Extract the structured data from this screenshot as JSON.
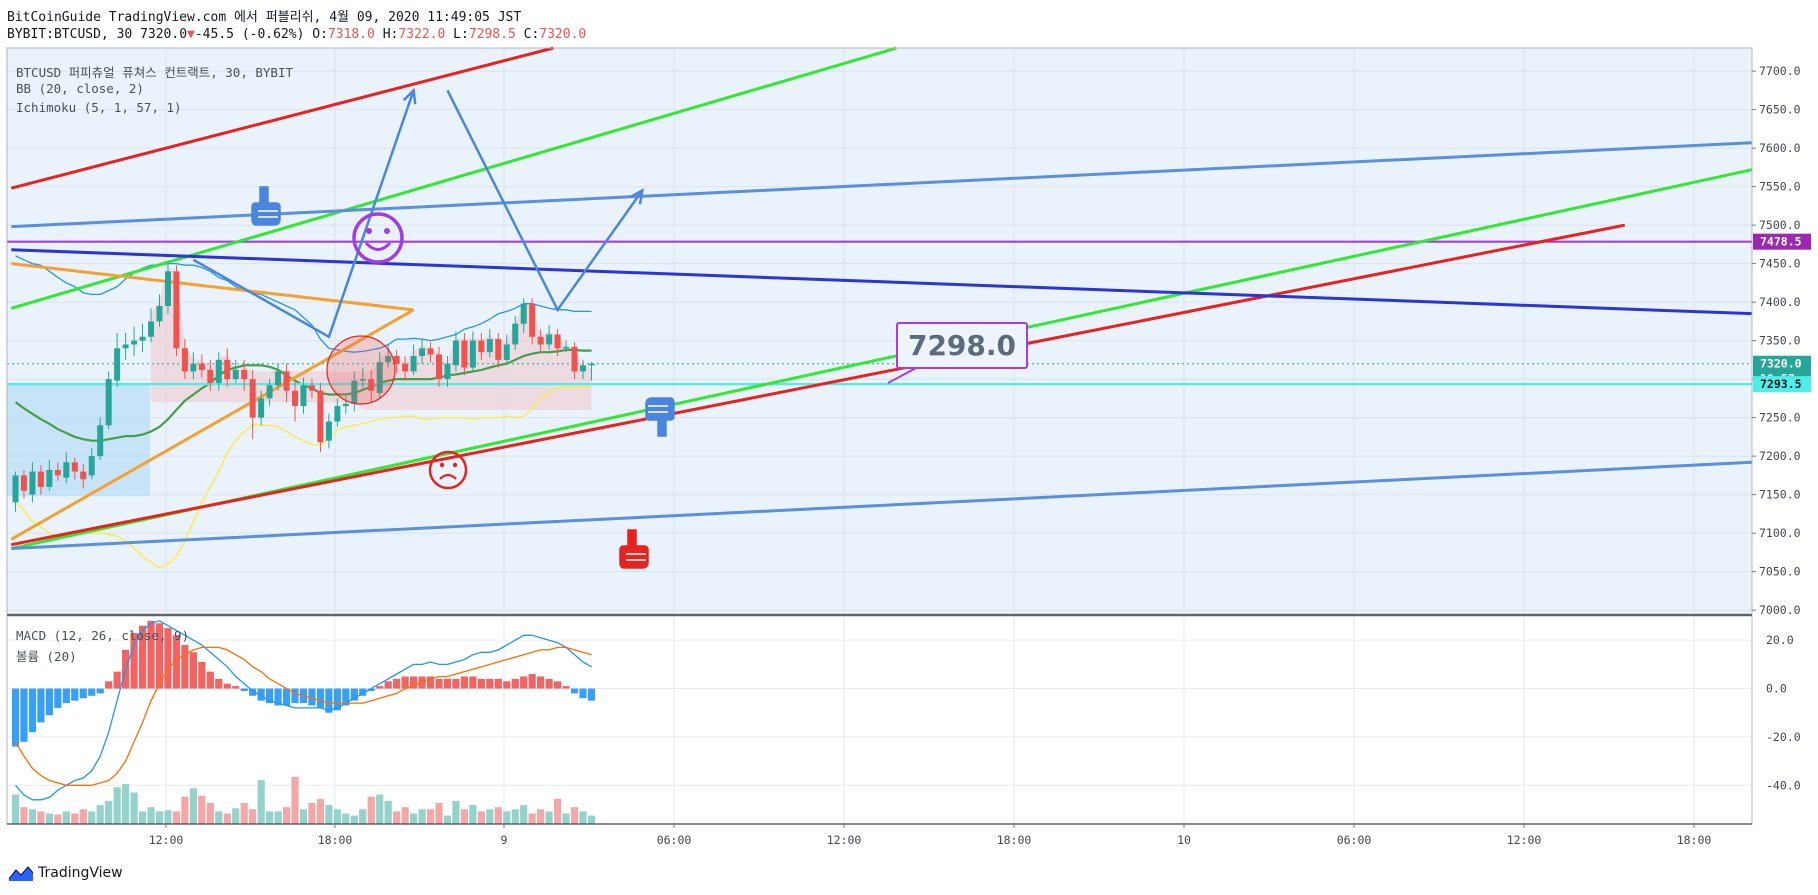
{
  "header": {
    "line1": "BitCoinGuide TradingView.com 에서 퍼블리쉬, 4월 09, 2020 11:49:05 JST",
    "symbol": "BYBIT:BTCUSD, 30",
    "last": "7320.0",
    "change": "-45.5 (-0.62%)",
    "o_label": "O:",
    "o_val": "7318.0",
    "h_label": "H:",
    "h_val": "7322.0",
    "l_label": "L:",
    "l_val": "7298.5",
    "c_label": "C:",
    "c_val": "7320.0"
  },
  "legend": {
    "main": "BTCUSD 퍼피츄얼 퓨쳐스 컨트랙트, 30, BYBIT",
    "bb": "BB (20, close, 2)",
    "ichimoku": "Ichimoku (5, 1, 57, 1)",
    "macd": "MACD (12, 26, close, 9)",
    "volume": "볼륨 (20)"
  },
  "brand": "TradingView",
  "colors": {
    "up": "#26a69a",
    "down": "#ef5350",
    "bb_band": "#2196f3",
    "bb_basis": "#43a047",
    "ichimoku_lag": "#ffeb3b",
    "trend_red": "#e8231f",
    "trend_green": "#33e833",
    "trend_blue": "#5b8fe0",
    "trend_navy": "#2b35d6",
    "orange": "#f5a030",
    "purple": "#a83ce0",
    "cyan": "#4deee8"
  },
  "chart_data": [
    {
      "type": "candlestick",
      "symbol": "BYBIT:BTCUSD",
      "interval": "30",
      "x_ticks": [
        "12:00",
        "18:00",
        "9",
        "06:00",
        "12:00",
        "18:00",
        "10",
        "06:00",
        "12:00",
        "18:00"
      ],
      "y_ticks": [
        "7700.0",
        "7650.0",
        "7600.0",
        "7550.0",
        "7500.0",
        "7450.0",
        "7400.0",
        "7350.0",
        "7300.0",
        "7250.0",
        "7200.0",
        "7150.0",
        "7100.0",
        "7050.0",
        "7000.0"
      ],
      "ylim": [
        6995,
        7730
      ],
      "price_labels": [
        {
          "text": "7478.5",
          "value": 7478.5,
          "color": "#9c27b0"
        },
        {
          "text": "7320.0",
          "value": 7320.0,
          "color": "#26a69a"
        },
        {
          "text": "10:57",
          "value": 7301,
          "color": "#26a69a"
        },
        {
          "text": "7293.5",
          "value": 7293.5,
          "color": "#4deee8"
        }
      ],
      "annotation": {
        "text": "7298.0",
        "value": 7298.0
      },
      "candles": [
        [
          7140,
          7175,
          7128,
          7180
        ],
        [
          7175,
          7155,
          7145,
          7182
        ],
        [
          7150,
          7180,
          7140,
          7192
        ],
        [
          7180,
          7160,
          7150,
          7188
        ],
        [
          7160,
          7182,
          7155,
          7195
        ],
        [
          7182,
          7175,
          7168,
          7192
        ],
        [
          7172,
          7192,
          7165,
          7205
        ],
        [
          7192,
          7180,
          7170,
          7198
        ],
        [
          7180,
          7170,
          7158,
          7190
        ],
        [
          7175,
          7200,
          7170,
          7210
        ],
        [
          7200,
          7240,
          7195,
          7250
        ],
        [
          7240,
          7300,
          7235,
          7310
        ],
        [
          7298,
          7340,
          7290,
          7360
        ],
        [
          7340,
          7345,
          7325,
          7360
        ],
        [
          7345,
          7350,
          7330,
          7368
        ],
        [
          7350,
          7355,
          7335,
          7372
        ],
        [
          7355,
          7375,
          7348,
          7392
        ],
        [
          7375,
          7395,
          7368,
          7410
        ],
        [
          7395,
          7440,
          7385,
          7452
        ],
        [
          7440,
          7340,
          7330,
          7448
        ],
        [
          7340,
          7310,
          7300,
          7352
        ],
        [
          7310,
          7320,
          7300,
          7335
        ],
        [
          7320,
          7312,
          7302,
          7332
        ],
        [
          7312,
          7295,
          7285,
          7325
        ],
        [
          7295,
          7325,
          7285,
          7335
        ],
        [
          7325,
          7300,
          7290,
          7340
        ],
        [
          7300,
          7312,
          7295,
          7325
        ],
        [
          7312,
          7300,
          7285,
          7325
        ],
        [
          7300,
          7250,
          7222,
          7312
        ],
        [
          7250,
          7275,
          7240,
          7285
        ],
        [
          7275,
          7292,
          7265,
          7300
        ],
        [
          7292,
          7310,
          7285,
          7320
        ],
        [
          7310,
          7285,
          7270,
          7320
        ],
        [
          7285,
          7265,
          7245,
          7298
        ],
        [
          7265,
          7292,
          7255,
          7302
        ],
        [
          7292,
          7285,
          7275,
          7300
        ],
        [
          7285,
          7218,
          7205,
          7295
        ],
        [
          7220,
          7245,
          7210,
          7255
        ],
        [
          7245,
          7265,
          7238,
          7275
        ],
        [
          7265,
          7268,
          7255,
          7278
        ],
        [
          7268,
          7298,
          7258,
          7310
        ],
        [
          7298,
          7300,
          7288,
          7315
        ],
        [
          7300,
          7285,
          7270,
          7312
        ],
        [
          7282,
          7322,
          7275,
          7335
        ],
        [
          7322,
          7330,
          7315,
          7345
        ],
        [
          7330,
          7320,
          7308,
          7338
        ],
        [
          7320,
          7310,
          7298,
          7330
        ],
        [
          7310,
          7330,
          7305,
          7345
        ],
        [
          7330,
          7340,
          7320,
          7352
        ],
        [
          7340,
          7332,
          7322,
          7348
        ],
        [
          7332,
          7300,
          7290,
          7342
        ],
        [
          7300,
          7320,
          7290,
          7330
        ],
        [
          7318,
          7350,
          7310,
          7362
        ],
        [
          7350,
          7315,
          7305,
          7360
        ],
        [
          7315,
          7350,
          7310,
          7362
        ],
        [
          7350,
          7335,
          7325,
          7360
        ],
        [
          7335,
          7352,
          7328,
          7365
        ],
        [
          7352,
          7325,
          7315,
          7360
        ],
        [
          7325,
          7345,
          7320,
          7358
        ],
        [
          7345,
          7372,
          7338,
          7382
        ],
        [
          7372,
          7398,
          7360,
          7405
        ],
        [
          7398,
          7355,
          7345,
          7405
        ],
        [
          7355,
          7345,
          7335,
          7365
        ],
        [
          7345,
          7358,
          7338,
          7370
        ],
        [
          7358,
          7340,
          7330,
          7365
        ],
        [
          7340,
          7342,
          7335,
          7350
        ],
        [
          7342,
          7310,
          7300,
          7348
        ],
        [
          7310,
          7318,
          7300,
          7325
        ],
        [
          7318,
          7320,
          7298,
          7322
        ]
      ],
      "bb_upper": [
        7460,
        7455,
        7450,
        7448,
        7440,
        7432,
        7425,
        7420,
        7412,
        7410,
        7410,
        7415,
        7420,
        7430,
        7438,
        7444,
        7448,
        7448,
        7450,
        7450,
        7448,
        7448,
        7445,
        7440,
        7432,
        7428,
        7420,
        7415,
        7412,
        7410,
        7405,
        7400,
        7395,
        7390,
        7380,
        7370,
        7352,
        7340,
        7338,
        7336,
        7335,
        7336,
        7338,
        7340,
        7345,
        7352,
        7352,
        7353,
        7352,
        7350,
        7352,
        7355,
        7358,
        7365,
        7368,
        7372,
        7378,
        7385,
        7388,
        7392,
        7398,
        7398,
        7395,
        7392,
        7390,
        7390,
        7388,
        7388,
        7388
      ],
      "bb_basis": [
        7270,
        7262,
        7255,
        7248,
        7242,
        7235,
        7230,
        7225,
        7222,
        7220,
        7220,
        7222,
        7224,
        7226,
        7226,
        7228,
        7232,
        7238,
        7248,
        7260,
        7272,
        7280,
        7288,
        7295,
        7305,
        7312,
        7315,
        7318,
        7318,
        7318,
        7316,
        7312,
        7305,
        7298,
        7292,
        7288,
        7282,
        7280,
        7280,
        7280,
        7282,
        7286,
        7290,
        7295,
        7298,
        7300,
        7300,
        7300,
        7300,
        7300,
        7302,
        7305,
        7306,
        7308,
        7310,
        7312,
        7315,
        7318,
        7320,
        7325,
        7330,
        7333,
        7335,
        7335,
        7336,
        7338,
        7338,
        7337,
        7337
      ],
      "bb_lower": [
        7140,
        7130,
        7115,
        7108,
        7100,
        7095,
        7095,
        7098,
        7102,
        7100,
        7100,
        7098,
        7096,
        7090,
        7080,
        7070,
        7062,
        7055,
        7060,
        7070,
        7090,
        7115,
        7140,
        7160,
        7180,
        7205,
        7220,
        7232,
        7240,
        7240,
        7240,
        7238,
        7232,
        7225,
        7220,
        7215,
        7215,
        7222,
        7235,
        7238,
        7240,
        7242,
        7245,
        7248,
        7250,
        7250,
        7252,
        7252,
        7248,
        7248,
        7250,
        7250,
        7250,
        7250,
        7248,
        7250,
        7250,
        7250,
        7252,
        7250,
        7252,
        7262,
        7275,
        7284,
        7288,
        7290,
        7290,
        7290,
        7290
      ],
      "trendlines": [
        {
          "color": "#e8231f",
          "from": [
            -0.5,
            7548
          ],
          "to": [
            63.5,
            7730
          ]
        },
        {
          "color": "#33e833",
          "from": [
            -0.5,
            7392
          ],
          "to": [
            104,
            7730
          ]
        },
        {
          "color": "#5b8fe0",
          "from": [
            -0.5,
            7498
          ],
          "to": [
            205,
            7607
          ]
        },
        {
          "color": "#33e833",
          "from": [
            -0.5,
            7080
          ],
          "to": [
            205,
            7572
          ]
        },
        {
          "color": "#e8231f",
          "from": [
            -0.5,
            7085
          ],
          "to": [
            190,
            7500
          ]
        },
        {
          "color": "#5b8fe0",
          "from": [
            -0.5,
            7080
          ],
          "to": [
            205,
            7192
          ]
        },
        {
          "color": "#2b35d6",
          "from": [
            -0.5,
            7468
          ],
          "to": [
            205,
            7385
          ]
        },
        {
          "color": "#f5a030",
          "from": [
            -0.5,
            7092
          ],
          "to": [
            47,
            7390
          ]
        },
        {
          "color": "#f5a030",
          "from": [
            -0.5,
            7450
          ],
          "to": [
            47,
            7390
          ]
        }
      ],
      "hlines": [
        {
          "value": 7478.5,
          "color": "#a83ce0"
        },
        {
          "value": 7293.5,
          "color": "#4deee8"
        }
      ],
      "arrows": [
        [
          [
            21,
            7455
          ],
          [
            37,
            7355
          ],
          [
            47,
            7675
          ]
        ],
        [
          [
            51,
            7675
          ],
          [
            64,
            7390
          ],
          [
            74,
            7545
          ]
        ]
      ]
    },
    {
      "type": "macd",
      "name": "MACD (12, 26, close, 9)",
      "y_ticks": [
        "20.0",
        "0.0",
        "-20.0",
        "-40.0"
      ],
      "ylim": [
        -56,
        30
      ],
      "histogram": [
        -24,
        -22,
        -18,
        -14,
        -11,
        -8,
        -6,
        -5,
        -4,
        -3,
        -2,
        3,
        7,
        16,
        23,
        26,
        28,
        27,
        25,
        22,
        18,
        15,
        11,
        7,
        4,
        2,
        1,
        -1,
        -3,
        -5,
        -6,
        -7,
        -7,
        -6,
        -6,
        -7,
        -8,
        -10,
        -9,
        -7,
        -5,
        -3,
        -1,
        1,
        3,
        4,
        5,
        5,
        5,
        5,
        4,
        4,
        4,
        5,
        5,
        4,
        4,
        4,
        3,
        4,
        5,
        6,
        5,
        4,
        3,
        1,
        -2,
        -4,
        -5
      ],
      "macd": [
        -40,
        -44,
        -46,
        -46,
        -45,
        -42,
        -40,
        -38,
        -37,
        -34,
        -28,
        -18,
        -5,
        8,
        18,
        24,
        27,
        28,
        26,
        24,
        22,
        20,
        18,
        15,
        12,
        9,
        5,
        2,
        -1,
        -3,
        -5,
        -6,
        -7,
        -8,
        -8,
        -8,
        -8,
        -9,
        -8,
        -6,
        -4,
        -2,
        0,
        2,
        4,
        6,
        8,
        10,
        10,
        11,
        10,
        10,
        11,
        12,
        14,
        15,
        15,
        16,
        18,
        20,
        22,
        22,
        21,
        20,
        19,
        17,
        14,
        11,
        9
      ],
      "signal": [
        -22,
        -28,
        -33,
        -36,
        -38,
        -39,
        -40,
        -40,
        -40,
        -40,
        -39,
        -38,
        -35,
        -30,
        -22,
        -14,
        -5,
        2,
        8,
        12,
        14,
        16,
        17,
        17,
        17,
        16,
        14,
        12,
        9,
        7,
        4,
        2,
        0,
        -2,
        -3,
        -4,
        -5,
        -6,
        -6,
        -6,
        -6,
        -6,
        -5,
        -4,
        -3,
        -2,
        0,
        1,
        3,
        4,
        5,
        5,
        6,
        7,
        8,
        9,
        10,
        11,
        12,
        13,
        14,
        15,
        16,
        16,
        17,
        17,
        16,
        15,
        14
      ]
    },
    {
      "type": "bar",
      "name": "볼륨 (20)",
      "values": [
        28,
        16,
        14,
        12,
        10,
        9,
        12,
        10,
        14,
        12,
        18,
        22,
        35,
        38,
        30,
        12,
        16,
        12,
        13,
        12,
        26,
        34,
        27,
        20,
        12,
        10,
        15,
        20,
        14,
        42,
        12,
        12,
        16,
        45,
        14,
        20,
        24,
        18,
        14,
        10,
        8,
        14,
        26,
        28,
        22,
        12,
        16,
        10,
        14,
        14,
        20,
        8,
        22,
        14,
        18,
        12,
        14,
        16,
        12,
        14,
        18,
        10,
        14,
        12,
        24,
        10,
        16,
        12,
        8
      ]
    }
  ]
}
